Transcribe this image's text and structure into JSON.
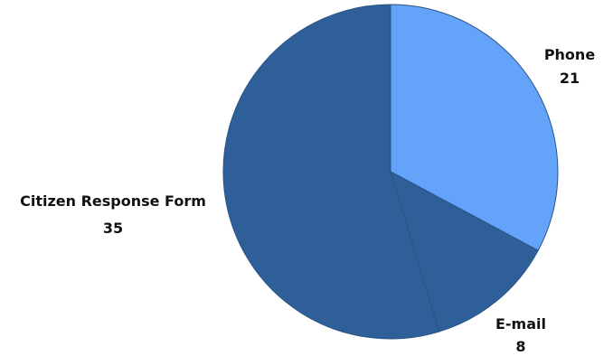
{
  "chart_data": {
    "type": "pie",
    "slices": [
      {
        "label": "Phone",
        "value": 21,
        "color": "#64A3FA"
      },
      {
        "label": "E-mail",
        "value": 8,
        "color": "#2E5F98"
      },
      {
        "label": "Citizen Response Form",
        "value": 35,
        "color": "#2E5F98"
      }
    ],
    "start": "12 o'clock",
    "direction": "clockwise",
    "legend": "none",
    "slice_border_color": "#2A5486"
  }
}
